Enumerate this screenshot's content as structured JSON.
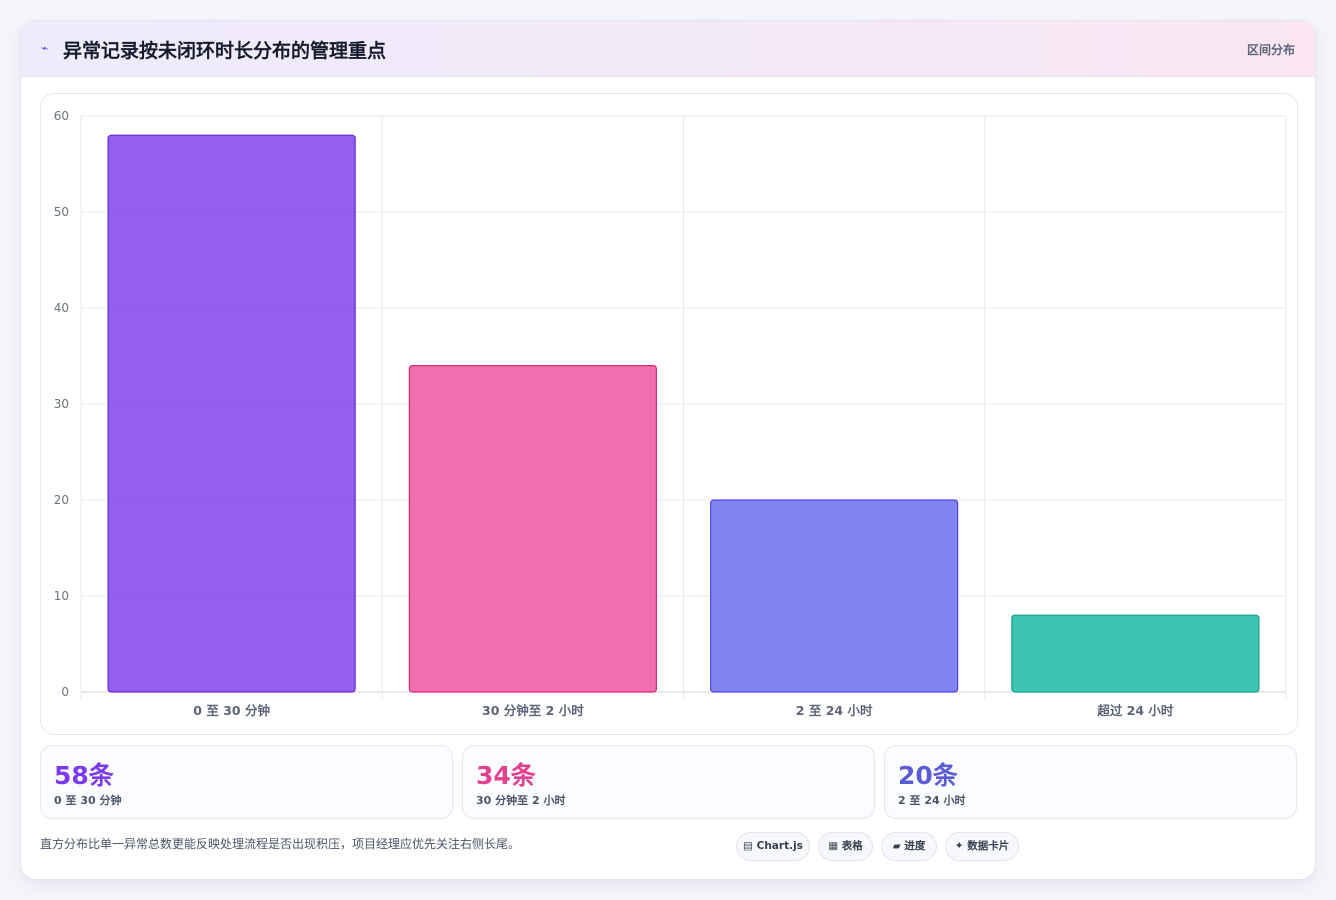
{
  "header": {
    "icon": "sparkline-icon",
    "title": "异常记录按未闭环时长分布的管理重点",
    "tag": "区间分布"
  },
  "chart_data": {
    "type": "bar",
    "categories": [
      "0 至 30 分钟",
      "30 分钟至 2 小时",
      "2 至 24 小时",
      "超过 24 小时"
    ],
    "values": [
      58,
      34,
      20,
      8
    ],
    "colors": [
      "#8b50ef",
      "#f062a8",
      "#7679f0",
      "#2fbfaa"
    ],
    "border_colors": [
      "#6d28d9",
      "#db2777",
      "#4f46e5",
      "#0f9f87"
    ],
    "ylim": [
      0,
      60
    ],
    "yticks": [
      0,
      10,
      20,
      30,
      40,
      50,
      60
    ],
    "grid": true,
    "legend": "none",
    "title": "",
    "xlabel": "",
    "ylabel": ""
  },
  "stats": [
    {
      "value": "58条",
      "label": "0 至 30 分钟",
      "color": "#7c3aed"
    },
    {
      "value": "34条",
      "label": "30 分钟至 2 小时",
      "color": "#e2418f"
    },
    {
      "value": "20条",
      "label": "2 至 24 小时",
      "color": "#5b5bd6"
    }
  ],
  "note": "直方分布比单一异常总数更能反映处理流程是否出现积压，项目经理应优先关注右侧长尾。",
  "chips": [
    {
      "icon": "chart-icon",
      "glyph": "▤",
      "label": "Chart.js"
    },
    {
      "icon": "table-icon",
      "glyph": "▦",
      "label": "表格"
    },
    {
      "icon": "progress-icon",
      "glyph": "▰",
      "label": "进度"
    },
    {
      "icon": "sparkle-icon",
      "glyph": "✦",
      "label": "数据卡片"
    }
  ]
}
